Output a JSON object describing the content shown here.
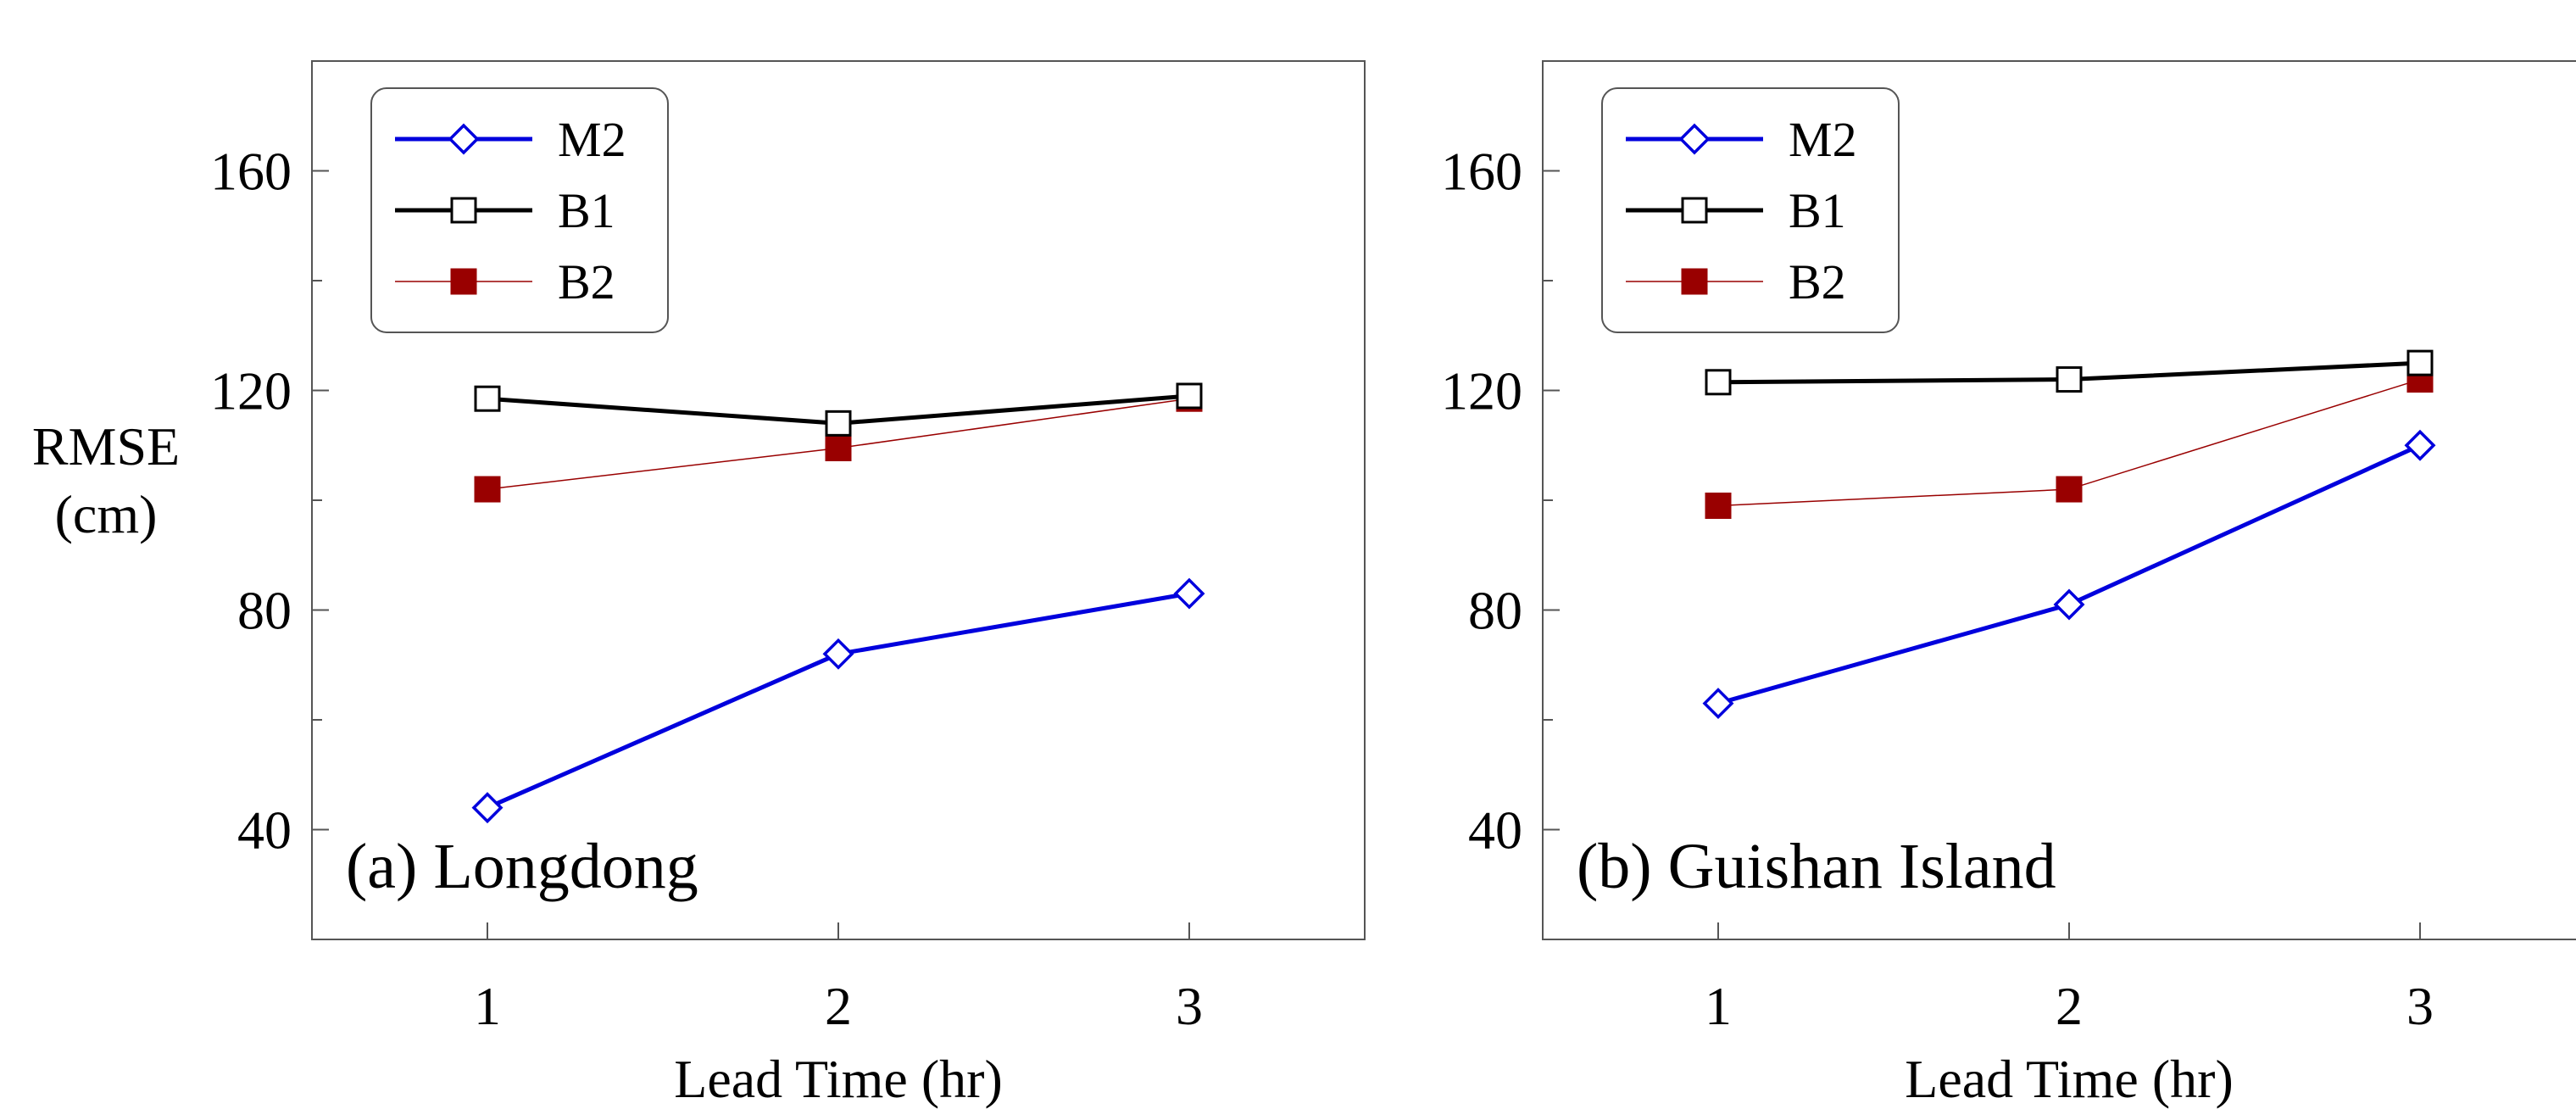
{
  "figure": {
    "ylabel_lines": [
      "RMSE",
      "(cm)"
    ]
  },
  "chart_data": [
    {
      "type": "line",
      "title": "(a) Longdong",
      "xlabel": "Lead Time (hr)",
      "ylabel": "RMSE (cm)",
      "xlim": [
        0.5,
        3.5
      ],
      "ylim": [
        20,
        180
      ],
      "x_ticks": [
        1,
        2,
        3
      ],
      "y_ticks": [
        40,
        80,
        120,
        160
      ],
      "legend_position": "top-left",
      "grid": false,
      "series": [
        {
          "name": "M2",
          "color": "#0000dd",
          "marker": "diamond-open",
          "x": [
            1,
            2,
            3
          ],
          "values": [
            44,
            72,
            83
          ]
        },
        {
          "name": "B1",
          "color": "#000000",
          "marker": "square-open",
          "x": [
            1,
            2,
            3
          ],
          "values": [
            118.5,
            114,
            119
          ]
        },
        {
          "name": "B2",
          "color": "#990000",
          "marker": "square-filled",
          "x": [
            1,
            2,
            3
          ],
          "values": [
            102,
            109.5,
            118.5
          ]
        }
      ]
    },
    {
      "type": "line",
      "title": "(b) Guishan Island",
      "xlabel": "Lead Time (hr)",
      "ylabel": "",
      "xlim": [
        0.5,
        3.5
      ],
      "ylim": [
        20,
        180
      ],
      "x_ticks": [
        1,
        2,
        3
      ],
      "y_ticks": [
        40,
        80,
        120,
        160
      ],
      "legend_position": "top-left",
      "grid": false,
      "series": [
        {
          "name": "M2",
          "color": "#0000dd",
          "marker": "diamond-open",
          "x": [
            1,
            2,
            3
          ],
          "values": [
            63,
            81,
            110
          ]
        },
        {
          "name": "B1",
          "color": "#000000",
          "marker": "square-open",
          "x": [
            1,
            2,
            3
          ],
          "values": [
            121.5,
            122,
            125
          ]
        },
        {
          "name": "B2",
          "color": "#990000",
          "marker": "square-filled",
          "x": [
            1,
            2,
            3
          ],
          "values": [
            99,
            102,
            122
          ]
        }
      ]
    }
  ]
}
